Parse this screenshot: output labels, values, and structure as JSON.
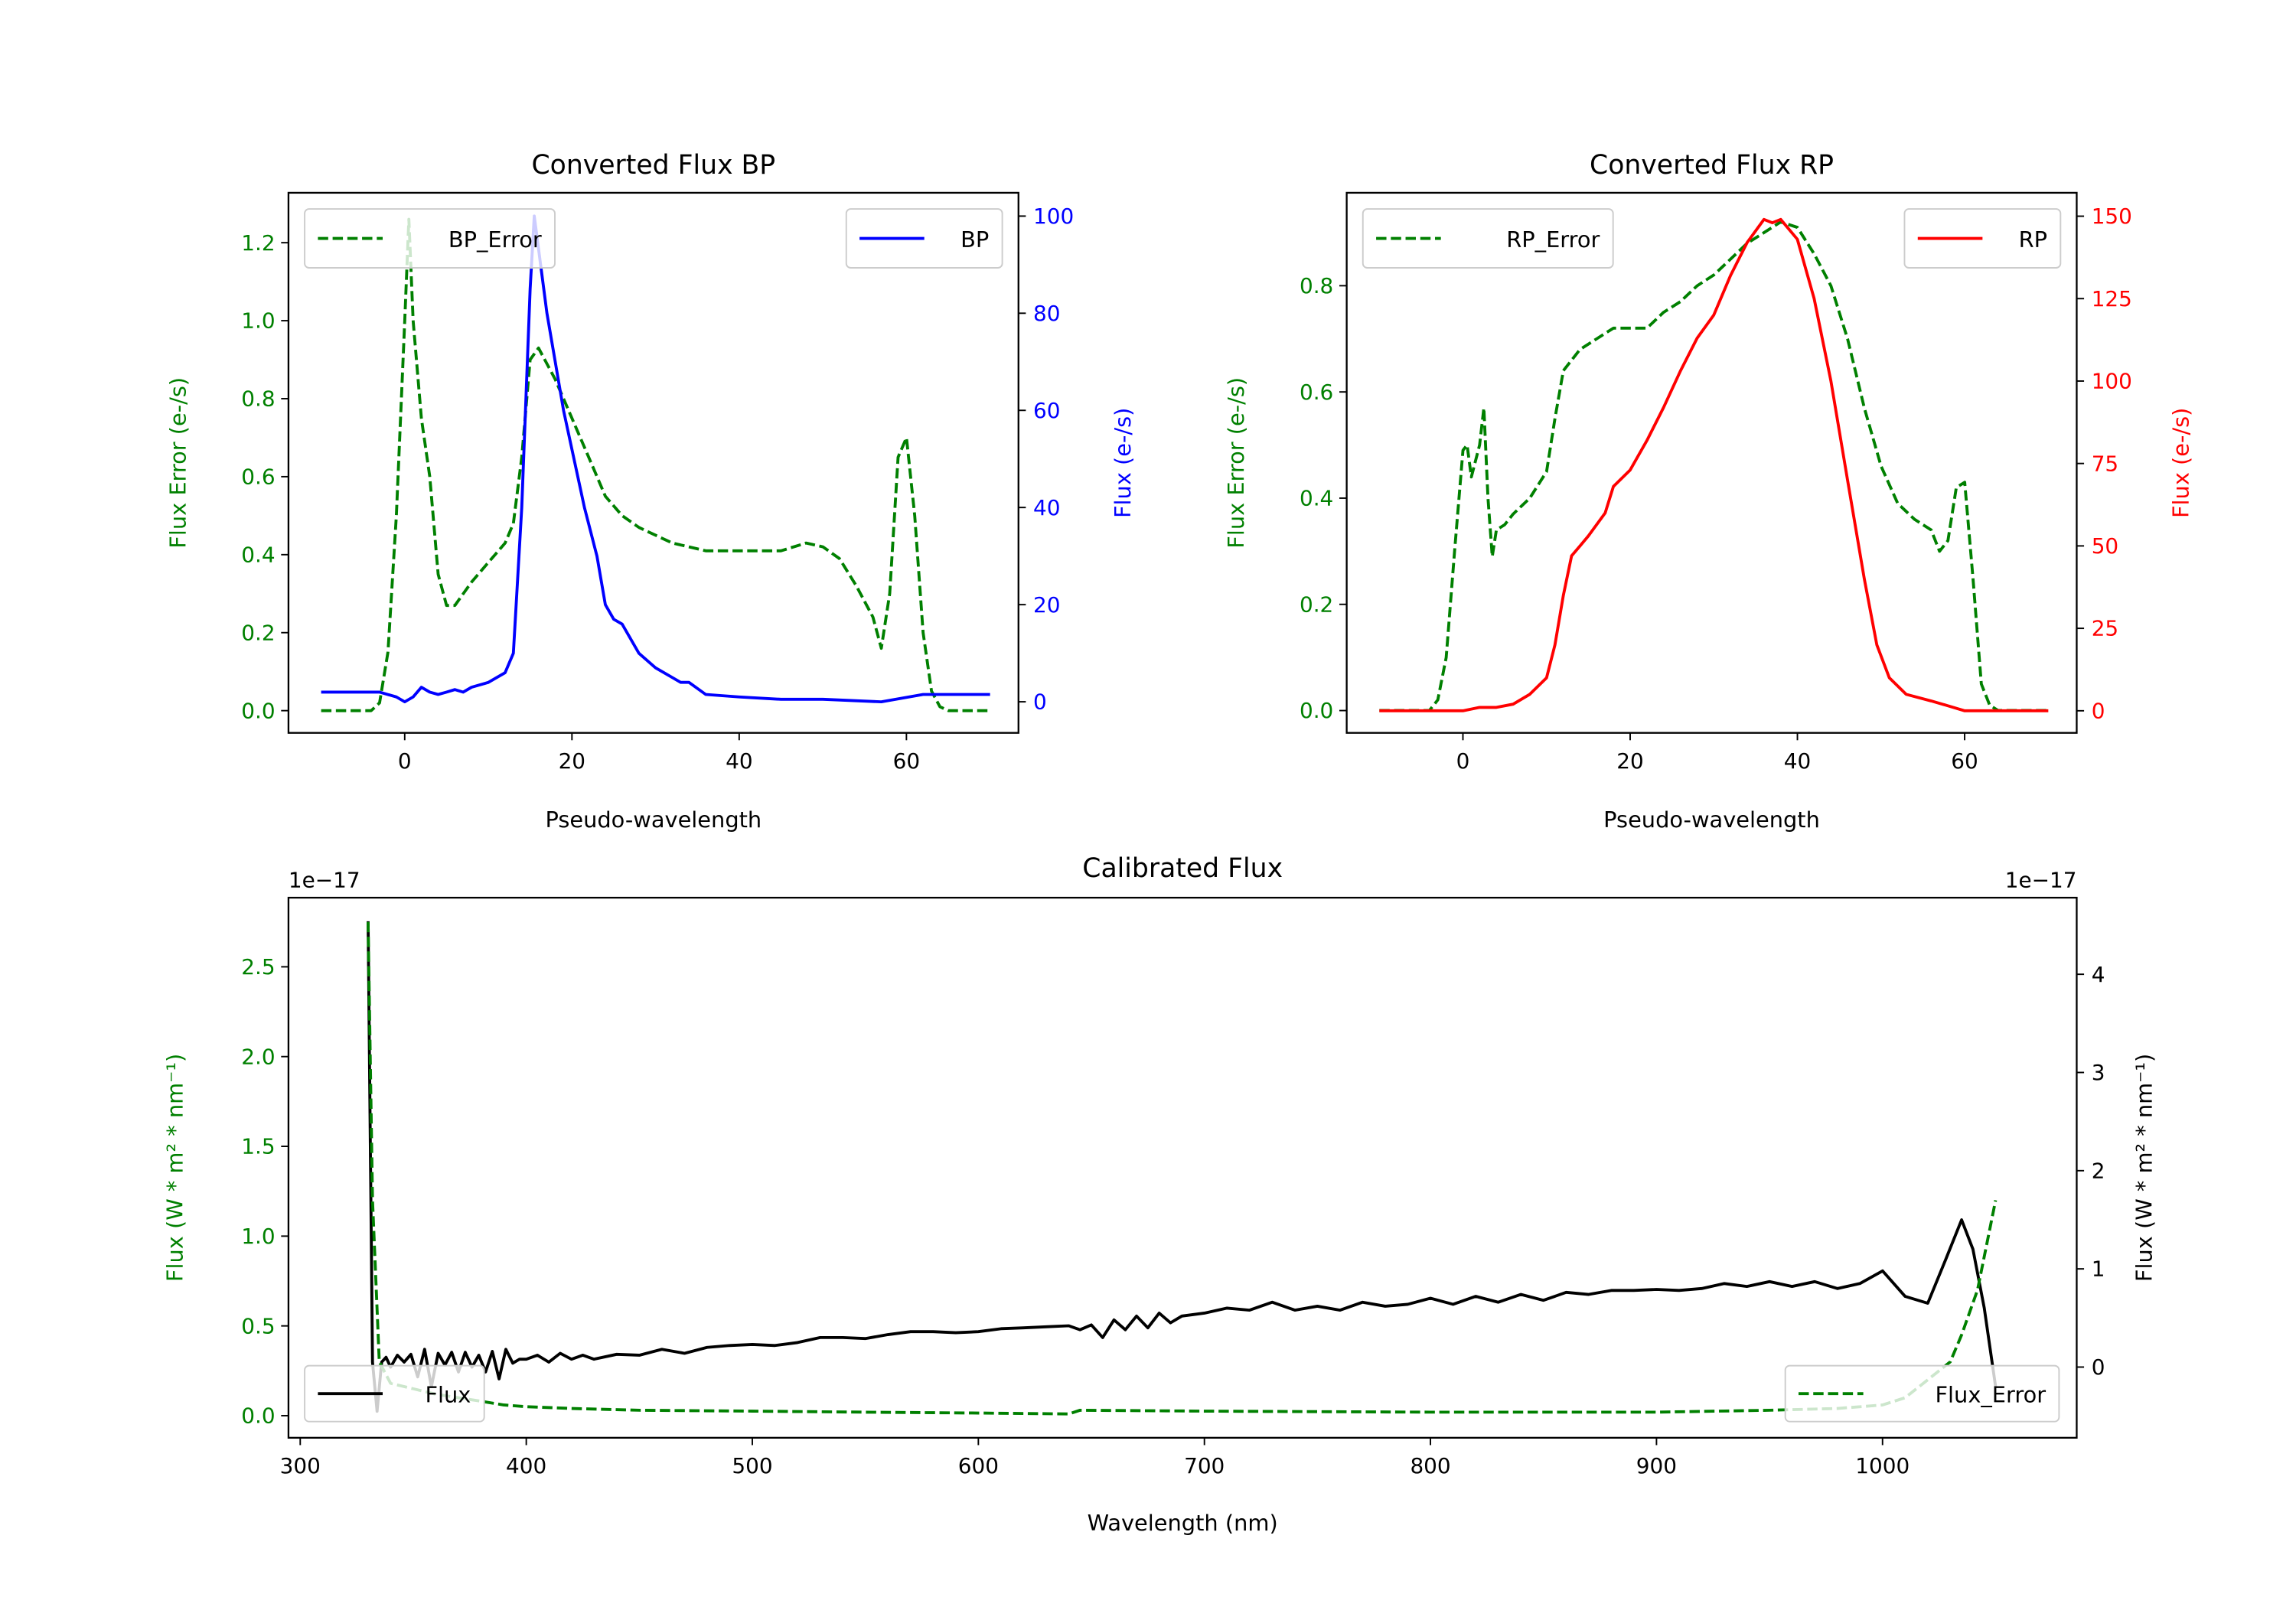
{
  "chart_data": [
    {
      "type": "line",
      "title": "Converted Flux BP",
      "xlabel": "Pseudo-wavelength",
      "ylabel_left": "Flux Error (e-/s)",
      "ylabel_right": "Flux (e-/s)",
      "xlim": [
        -13.9,
        73.4
      ],
      "ylim_left": [
        -0.057,
        1.328
      ],
      "ylim_right": [
        -6.4,
        104.8
      ],
      "x_ticks": [
        "0",
        "20",
        "40",
        "60"
      ],
      "x_tick_values": [
        0,
        20,
        40,
        60
      ],
      "left_ticks": [
        "0.0",
        "0.2",
        "0.4",
        "0.6",
        "0.8",
        "1.0",
        "1.2"
      ],
      "left_tick_values": [
        0,
        0.2,
        0.4,
        0.6,
        0.8,
        1.0,
        1.2
      ],
      "right_ticks": [
        "0",
        "20",
        "40",
        "60",
        "80",
        "100"
      ],
      "right_tick_values": [
        0,
        20,
        40,
        60,
        80,
        100
      ],
      "left_color": "#008000",
      "right_color": "#0000ff",
      "series": [
        {
          "name": "BP_Error",
          "axis": "left",
          "style": "dashed",
          "color": "#008000",
          "legend": "upper left",
          "x": [
            -10,
            -4,
            -3,
            -2,
            -1,
            0,
            0.5,
            1,
            2,
            3,
            4,
            5,
            6,
            8,
            10,
            12,
            13,
            14,
            15,
            16,
            18,
            20,
            22,
            24,
            26,
            28,
            30,
            32,
            34,
            36,
            40,
            45,
            48,
            50,
            52,
            54,
            56,
            57,
            58,
            59,
            60,
            61,
            62,
            63,
            64,
            65,
            70
          ],
          "y": [
            0,
            0,
            0.02,
            0.15,
            0.5,
            1.0,
            1.26,
            1.0,
            0.75,
            0.6,
            0.35,
            0.27,
            0.27,
            0.33,
            0.38,
            0.43,
            0.48,
            0.65,
            0.9,
            0.93,
            0.85,
            0.75,
            0.65,
            0.55,
            0.5,
            0.47,
            0.45,
            0.43,
            0.42,
            0.41,
            0.41,
            0.41,
            0.43,
            0.42,
            0.39,
            0.32,
            0.24,
            0.16,
            0.3,
            0.65,
            0.7,
            0.5,
            0.2,
            0.05,
            0.01,
            0,
            0
          ]
        },
        {
          "name": "BP",
          "axis": "right",
          "style": "solid",
          "color": "#0000ff",
          "legend": "upper right",
          "x": [
            -10,
            -3,
            -1,
            0,
            1,
            2,
            3,
            4,
            5,
            6,
            7,
            8,
            10,
            12,
            13,
            14,
            15,
            15.5,
            17,
            19,
            21.5,
            23,
            24,
            25,
            26,
            28,
            30,
            32,
            33,
            34,
            36,
            40,
            45,
            50,
            57,
            62,
            70
          ],
          "y": [
            2,
            2,
            1,
            0,
            1,
            3,
            2,
            1.5,
            2,
            2.5,
            2,
            3,
            4,
            6,
            10,
            40,
            85,
            100,
            80,
            60,
            40,
            30,
            20,
            17,
            16,
            10,
            7,
            5,
            4,
            4,
            1.5,
            1,
            0.5,
            0.5,
            0,
            1.5,
            1.5
          ]
        }
      ]
    },
    {
      "type": "line",
      "title": "Converted Flux RP",
      "xlabel": "Pseudo-wavelength",
      "ylabel_left": "Flux Error (e-/s)",
      "ylabel_right": "Flux (e-/s)",
      "xlim": [
        -13.9,
        73.4
      ],
      "ylim_left": [
        -0.042,
        0.975
      ],
      "ylim_right": [
        -6.7,
        157.1
      ],
      "x_ticks": [
        "0",
        "20",
        "40",
        "60"
      ],
      "x_tick_values": [
        0,
        20,
        40,
        60
      ],
      "left_ticks": [
        "0.0",
        "0.2",
        "0.4",
        "0.6",
        "0.8"
      ],
      "left_tick_values": [
        0,
        0.2,
        0.4,
        0.6,
        0.8
      ],
      "right_ticks": [
        "0",
        "25",
        "50",
        "75",
        "100",
        "125",
        "150"
      ],
      "right_tick_values": [
        0,
        25,
        50,
        75,
        100,
        125,
        150
      ],
      "left_color": "#008000",
      "right_color": "#ff0000",
      "series": [
        {
          "name": "RP_Error",
          "axis": "left",
          "style": "dashed",
          "color": "#008000",
          "legend": "upper left",
          "x": [
            -10,
            -4,
            -3,
            -2,
            -1,
            0,
            0.5,
            1,
            2,
            2.5,
            3,
            3.5,
            4,
            5,
            6,
            8,
            10,
            11,
            12,
            14,
            16,
            18,
            20,
            22,
            24,
            26,
            28,
            30,
            32,
            34,
            36,
            38,
            40,
            42,
            44,
            46,
            48,
            50,
            52,
            54,
            56,
            57,
            58,
            59,
            60,
            61,
            62,
            63,
            64,
            70
          ],
          "y": [
            0,
            0,
            0.02,
            0.1,
            0.3,
            0.49,
            0.5,
            0.44,
            0.5,
            0.57,
            0.4,
            0.29,
            0.34,
            0.35,
            0.37,
            0.4,
            0.45,
            0.55,
            0.64,
            0.68,
            0.7,
            0.72,
            0.72,
            0.72,
            0.75,
            0.77,
            0.8,
            0.82,
            0.85,
            0.88,
            0.9,
            0.92,
            0.91,
            0.86,
            0.8,
            0.7,
            0.57,
            0.46,
            0.39,
            0.36,
            0.34,
            0.3,
            0.32,
            0.42,
            0.43,
            0.25,
            0.05,
            0.01,
            0,
            0
          ]
        },
        {
          "name": "RP",
          "axis": "right",
          "style": "solid",
          "color": "#ff0000",
          "legend": "upper right",
          "x": [
            -10,
            0,
            2,
            4,
            6,
            8,
            10,
            11,
            12,
            13,
            14,
            15,
            17,
            18,
            20,
            22,
            24,
            26,
            28,
            30,
            32,
            34,
            36,
            37,
            38,
            40,
            42,
            44,
            46,
            48,
            49.5,
            51,
            53,
            56,
            58,
            60,
            70
          ],
          "y": [
            0,
            0,
            1,
            1,
            2,
            5,
            10,
            20,
            35,
            47,
            50,
            53,
            60,
            68,
            73,
            82,
            92,
            103,
            113,
            120,
            132,
            142,
            149,
            148,
            149,
            143,
            125,
            100,
            70,
            40,
            20,
            10,
            5,
            3,
            1.5,
            0,
            0
          ]
        }
      ]
    },
    {
      "type": "line",
      "title": "Calibrated Flux",
      "xlabel": "Wavelength (nm)",
      "ylabel_left": "Flux (W * m² * nm⁻¹)",
      "ylabel_right": "Flux (W * m² * nm⁻¹)",
      "offset_left": "1e−17",
      "offset_right": "1e−17",
      "xlim": [
        294.8,
        1085.9
      ],
      "ylim_left": [
        -0.123,
        2.885
      ],
      "ylim_right": [
        -0.72,
        4.78
      ],
      "x_ticks": [
        "300",
        "400",
        "500",
        "600",
        "700",
        "800",
        "900",
        "1000"
      ],
      "x_tick_values": [
        300,
        400,
        500,
        600,
        700,
        800,
        900,
        1000
      ],
      "left_ticks": [
        "0.0",
        "0.5",
        "1.0",
        "1.5",
        "2.0",
        "2.5"
      ],
      "left_tick_values": [
        0,
        0.5,
        1.0,
        1.5,
        2.0,
        2.5
      ],
      "right_ticks": [
        "0",
        "1",
        "2",
        "3",
        "4"
      ],
      "right_tick_values": [
        0,
        1,
        2,
        3,
        4
      ],
      "left_color": "#008000",
      "right_color": "#000000",
      "series": [
        {
          "name": "Flux",
          "axis": "right",
          "style": "solid",
          "color": "#000000",
          "legend": "lower left",
          "x": [
            330,
            332,
            334,
            336,
            338,
            340,
            343,
            346,
            349,
            352,
            355,
            358,
            361,
            364,
            367,
            370,
            373,
            376,
            379,
            382,
            385,
            388,
            391,
            394,
            397,
            400,
            405,
            410,
            415,
            420,
            425,
            430,
            440,
            450,
            460,
            470,
            480,
            490,
            500,
            510,
            520,
            530,
            540,
            550,
            560,
            570,
            580,
            590,
            600,
            610,
            620,
            630,
            640,
            645,
            650,
            655,
            660,
            665,
            670,
            675,
            680,
            685,
            690,
            700,
            710,
            720,
            730,
            740,
            750,
            760,
            770,
            780,
            790,
            800,
            810,
            820,
            830,
            840,
            850,
            860,
            870,
            880,
            890,
            900,
            910,
            920,
            930,
            940,
            950,
            960,
            970,
            980,
            990,
            1000,
            1010,
            1020,
            1028,
            1035,
            1040,
            1045,
            1050
          ],
          "y": [
            4.54,
            0.05,
            -0.45,
            0.05,
            0.1,
            0.0,
            0.12,
            0.05,
            0.13,
            -0.1,
            0.18,
            -0.2,
            0.14,
            0.02,
            0.15,
            -0.05,
            0.15,
            0.0,
            0.12,
            -0.05,
            0.16,
            -0.12,
            0.18,
            0.04,
            0.08,
            0.08,
            0.12,
            0.05,
            0.14,
            0.08,
            0.12,
            0.08,
            0.13,
            0.12,
            0.18,
            0.14,
            0.2,
            0.22,
            0.23,
            0.22,
            0.25,
            0.3,
            0.3,
            0.29,
            0.33,
            0.36,
            0.36,
            0.35,
            0.36,
            0.39,
            0.4,
            0.41,
            0.42,
            0.38,
            0.43,
            0.3,
            0.48,
            0.38,
            0.52,
            0.4,
            0.55,
            0.45,
            0.52,
            0.55,
            0.6,
            0.58,
            0.66,
            0.58,
            0.62,
            0.58,
            0.66,
            0.62,
            0.64,
            0.7,
            0.64,
            0.72,
            0.66,
            0.74,
            0.68,
            0.76,
            0.74,
            0.78,
            0.78,
            0.79,
            0.78,
            0.8,
            0.85,
            0.82,
            0.87,
            0.82,
            0.87,
            0.8,
            0.85,
            0.98,
            0.72,
            0.65,
            1.1,
            1.5,
            1.2,
            0.6,
            -0.2
          ]
        },
        {
          "name": "Flux_Error",
          "axis": "left",
          "style": "dashed",
          "color": "#008000",
          "legend": "lower right",
          "x": [
            330,
            332,
            335,
            340,
            350,
            360,
            370,
            380,
            390,
            400,
            420,
            450,
            500,
            550,
            600,
            640,
            645,
            700,
            800,
            900,
            950,
            980,
            1000,
            1010,
            1020,
            1030,
            1035,
            1042,
            1050
          ],
          "y": [
            2.75,
            1.2,
            0.3,
            0.18,
            0.15,
            0.12,
            0.1,
            0.08,
            0.06,
            0.05,
            0.04,
            0.03,
            0.025,
            0.02,
            0.015,
            0.01,
            0.03,
            0.025,
            0.02,
            0.02,
            0.03,
            0.04,
            0.06,
            0.1,
            0.2,
            0.3,
            0.45,
            0.7,
            1.2
          ]
        }
      ]
    }
  ]
}
